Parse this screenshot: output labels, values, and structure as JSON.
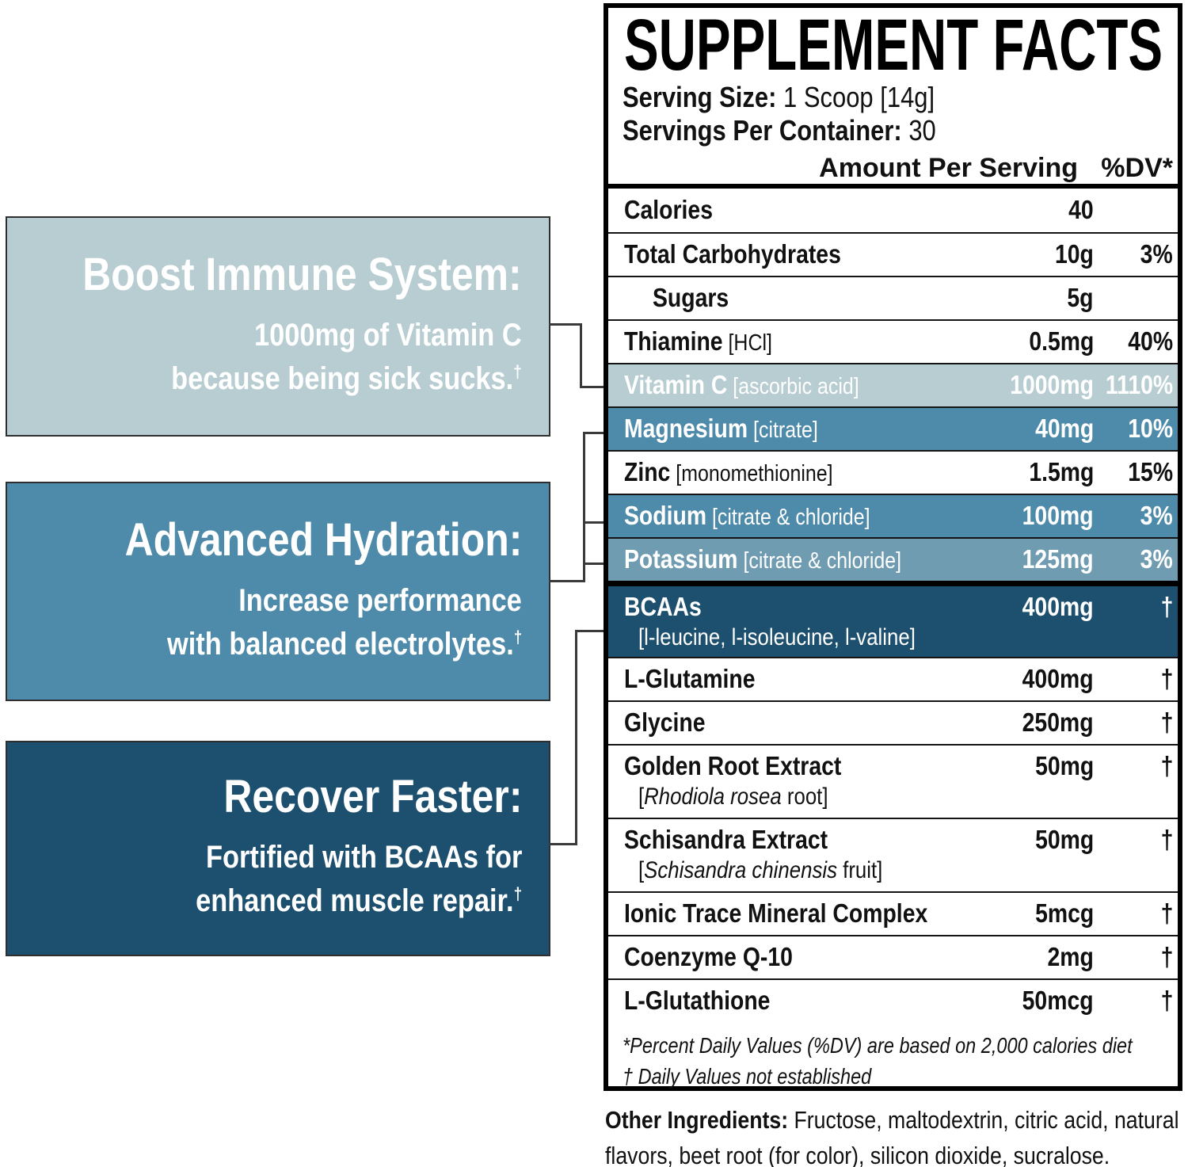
{
  "colors": {
    "light_blue": "#b7cdd2",
    "medium_blue": "#4e8aa9",
    "medium_blue_light": "#6f9cb1",
    "dark_blue": "#1d4f6e",
    "connector": "#3a3a3a"
  },
  "callouts": [
    {
      "title": "Boost Immune System:",
      "line1": "1000mg of Vitamin C",
      "line2": "because being sick sucks.",
      "dagger": "†"
    },
    {
      "title": "Advanced Hydration:",
      "line1": "Increase performance",
      "line2": "with balanced electrolytes.",
      "dagger": "†"
    },
    {
      "title": "Recover Faster:",
      "line1": "Fortified with BCAAs for",
      "line2": "enhanced muscle repair.",
      "dagger": "†"
    }
  ],
  "panel": {
    "title": "SUPPLEMENT FACTS",
    "serving_size_label": "Serving Size:",
    "serving_size_value": "1 Scoop [14g]",
    "servings_label": "Servings Per Container:",
    "servings_value": "30",
    "col_amount": "Amount Per Serving",
    "col_dv": "%DV*",
    "rows": [
      {
        "name": "Calories",
        "amount": "40",
        "dv": ""
      },
      {
        "name": "Total Carbohydrates",
        "amount": "10g",
        "dv": "3%"
      },
      {
        "name": "Sugars",
        "indent": true,
        "amount": "5g",
        "dv": ""
      },
      {
        "name": "Thiamine",
        "note": "[HCl]",
        "amount": "0.5mg",
        "dv": "40%"
      },
      {
        "name": "Vitamin C",
        "note": "[ascorbic acid]",
        "amount": "1000mg",
        "dv": "1110%",
        "style": "light"
      },
      {
        "name": "Magnesium",
        "note": "[citrate]",
        "amount": "40mg",
        "dv": "10%",
        "style": "medium"
      },
      {
        "name": "Zinc",
        "note": "[monomethionine]",
        "amount": "1.5mg",
        "dv": "15%"
      },
      {
        "name": "Sodium",
        "note": "[citrate & chloride]",
        "amount": "100mg",
        "dv": "3%",
        "style": "medium"
      },
      {
        "name": "Potassium",
        "note": "[citrate & chloride]",
        "amount": "125mg",
        "dv": "3%",
        "style": "medium2"
      },
      {
        "name": "BCAAs",
        "sub_pre": "[l-leucine, l-isoleucine, l-valine]",
        "sub_italic": "",
        "sub_post": "",
        "amount": "400mg",
        "dv": "†",
        "style": "dark",
        "two_line": true,
        "sep_before": "thick"
      },
      {
        "name": "L-Glutamine",
        "amount": "400mg",
        "dv": "†"
      },
      {
        "name": "Glycine",
        "amount": "250mg",
        "dv": "†"
      },
      {
        "name": "Golden Root Extract",
        "sub_pre": "[",
        "sub_italic": "Rhodiola rosea",
        "sub_post": " root]",
        "amount": "50mg",
        "dv": "†",
        "two_line": true
      },
      {
        "name": "Schisandra Extract",
        "sub_pre": "[",
        "sub_italic": "Schisandra chinensis",
        "sub_post": " fruit]",
        "amount": "50mg",
        "dv": "†",
        "two_line": true
      },
      {
        "name": "Ionic Trace Mineral Complex",
        "amount": "5mcg",
        "dv": "†"
      },
      {
        "name": "Coenzyme Q-10",
        "amount": "2mg",
        "dv": "†"
      },
      {
        "name": "L-Glutathione",
        "amount": "50mcg",
        "dv": "†"
      }
    ],
    "footnote1": "*Percent Daily Values (%DV) are based on 2,000 calories diet",
    "footnote2": "† Daily Values not established"
  },
  "other_ingredients": {
    "label": "Other Ingredients:",
    "text": "Fructose, maltodextrin, citric acid, natural flavors, beet root (for color), silicon dioxide, sucralose."
  }
}
